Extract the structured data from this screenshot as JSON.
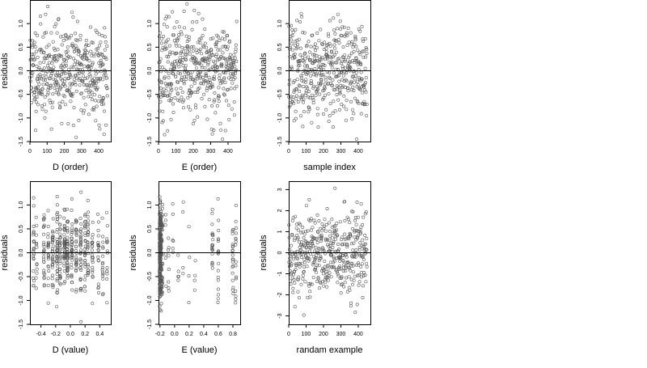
{
  "colors": {
    "point": "#555555",
    "axis": "#000000",
    "zeroline": "#000000",
    "background": "#ffffff"
  },
  "chart_data": [
    {
      "type": "scatter",
      "xlabel": "D (order)",
      "ylabel": "residuals",
      "xlim": [
        0,
        470
      ],
      "ylim": [
        -1.5,
        1.5
      ],
      "xticks": [
        0,
        100,
        200,
        300,
        400
      ],
      "yticks": [
        -1.5,
        -1.0,
        -0.5,
        0.0,
        0.5,
        1.0
      ],
      "yticklabels": [
        "-1.5",
        "-1.0",
        "-0.5",
        "0.0",
        "0.5",
        "1.0"
      ],
      "zero_line": true,
      "points": {
        "generator": "index",
        "n": 450,
        "seed": 11,
        "sd": 0.5,
        "ymin": -1.45,
        "ymax": 1.42
      }
    },
    {
      "type": "scatter",
      "xlabel": "E (order)",
      "ylabel": "residuals",
      "xlim": [
        0,
        470
      ],
      "ylim": [
        -1.5,
        1.5
      ],
      "xticks": [
        0,
        100,
        200,
        300,
        400
      ],
      "yticks": [
        -1.5,
        -1.0,
        -0.5,
        0.0,
        0.5,
        1.0
      ],
      "yticklabels": [
        "-1.5",
        "-1.0",
        "-0.5",
        "0.0",
        "0.5",
        "1.0"
      ],
      "zero_line": true,
      "points": {
        "generator": "index",
        "n": 450,
        "seed": 23,
        "sd": 0.5,
        "ymin": -1.45,
        "ymax": 1.42
      }
    },
    {
      "type": "scatter",
      "xlabel": "sample index",
      "ylabel": "residuals",
      "xlim": [
        0,
        470
      ],
      "ylim": [
        -1.5,
        1.5
      ],
      "xticks": [
        0,
        100,
        200,
        300,
        400
      ],
      "yticks": [
        -1.5,
        -1.0,
        -0.5,
        0.0,
        0.5,
        1.0
      ],
      "yticklabels": [
        "-1.5",
        "-1.0",
        "-0.5",
        "0.0",
        "0.5",
        "1.0"
      ],
      "zero_line": true,
      "points": {
        "generator": "index",
        "n": 450,
        "seed": 37,
        "sd": 0.5,
        "ymin": -1.45,
        "ymax": 1.42
      }
    },
    {
      "type": "scatter",
      "xlabel": "D (value)",
      "ylabel": "residuals",
      "xlim": [
        -0.55,
        0.55
      ],
      "ylim": [
        -1.5,
        1.5
      ],
      "xticks": [
        -0.4,
        -0.2,
        0.0,
        0.2,
        0.4
      ],
      "xticklabels": [
        "-0.4",
        "-0.2",
        "0.0",
        "0.2",
        "0.4"
      ],
      "yticks": [
        -1.5,
        -1.0,
        -0.5,
        0.0,
        0.5,
        1.0
      ],
      "yticklabels": [
        "-1.5",
        "-1.0",
        "-0.5",
        "0.0",
        "0.5",
        "1.0"
      ],
      "zero_line": true,
      "points": {
        "generator": "columns",
        "seed": 41,
        "sd": 0.45,
        "ymin": -1.45,
        "ymax": 1.42,
        "columns": [
          [
            -0.5,
            22
          ],
          [
            -0.46,
            12
          ],
          [
            -0.36,
            26
          ],
          [
            -0.3,
            20
          ],
          [
            -0.24,
            30
          ],
          [
            -0.18,
            38
          ],
          [
            -0.14,
            32
          ],
          [
            -0.08,
            38
          ],
          [
            -0.04,
            40
          ],
          [
            0.02,
            34
          ],
          [
            0.08,
            30
          ],
          [
            0.14,
            36
          ],
          [
            0.2,
            28
          ],
          [
            0.24,
            26
          ],
          [
            0.3,
            22
          ],
          [
            0.38,
            18
          ],
          [
            0.44,
            16
          ],
          [
            0.5,
            14
          ]
        ]
      }
    },
    {
      "type": "scatter",
      "xlabel": "E (value)",
      "ylabel": "residuals",
      "xlim": [
        -0.22,
        0.9
      ],
      "ylim": [
        -1.5,
        1.5
      ],
      "xticks": [
        -0.2,
        0.0,
        0.2,
        0.4,
        0.6,
        0.8
      ],
      "xticklabels": [
        "-0.2",
        "0.0",
        "0.2",
        "0.4",
        "0.6",
        "0.8"
      ],
      "yticks": [
        -1.5,
        -1.0,
        -0.5,
        0.0,
        0.5,
        1.0
      ],
      "yticklabels": [
        "-1.5",
        "-1.0",
        "-0.5",
        "0.0",
        "0.5",
        "1.0"
      ],
      "zero_line": true,
      "points": {
        "generator": "columns",
        "seed": 57,
        "sd": 0.5,
        "ymin": -1.45,
        "ymax": 1.42,
        "columns": [
          [
            -0.2,
            180
          ],
          [
            -0.185,
            60
          ],
          [
            -0.17,
            30
          ],
          [
            -0.12,
            6
          ],
          [
            -0.08,
            8
          ],
          [
            -0.02,
            6
          ],
          [
            0.05,
            5
          ],
          [
            0.12,
            4
          ],
          [
            0.2,
            4
          ],
          [
            0.28,
            4
          ],
          [
            0.52,
            20
          ],
          [
            0.6,
            18
          ],
          [
            0.8,
            20
          ],
          [
            0.84,
            16
          ]
        ]
      }
    },
    {
      "type": "scatter",
      "xlabel": "randam example",
      "ylabel": "residuals",
      "xlim": [
        0,
        470
      ],
      "ylim": [
        -3.4,
        3.4
      ],
      "xticks": [
        0,
        100,
        200,
        300,
        400
      ],
      "yticks": [
        -3,
        -2,
        -1,
        0,
        1,
        2,
        3
      ],
      "yticklabels": [
        "-3",
        "-2",
        "-1",
        "0",
        "1",
        "2",
        "3"
      ],
      "zero_line": true,
      "points": {
        "generator": "index",
        "n": 450,
        "seed": 73,
        "sd": 1.0,
        "ymin": -3.2,
        "ymax": 3.15
      }
    }
  ]
}
